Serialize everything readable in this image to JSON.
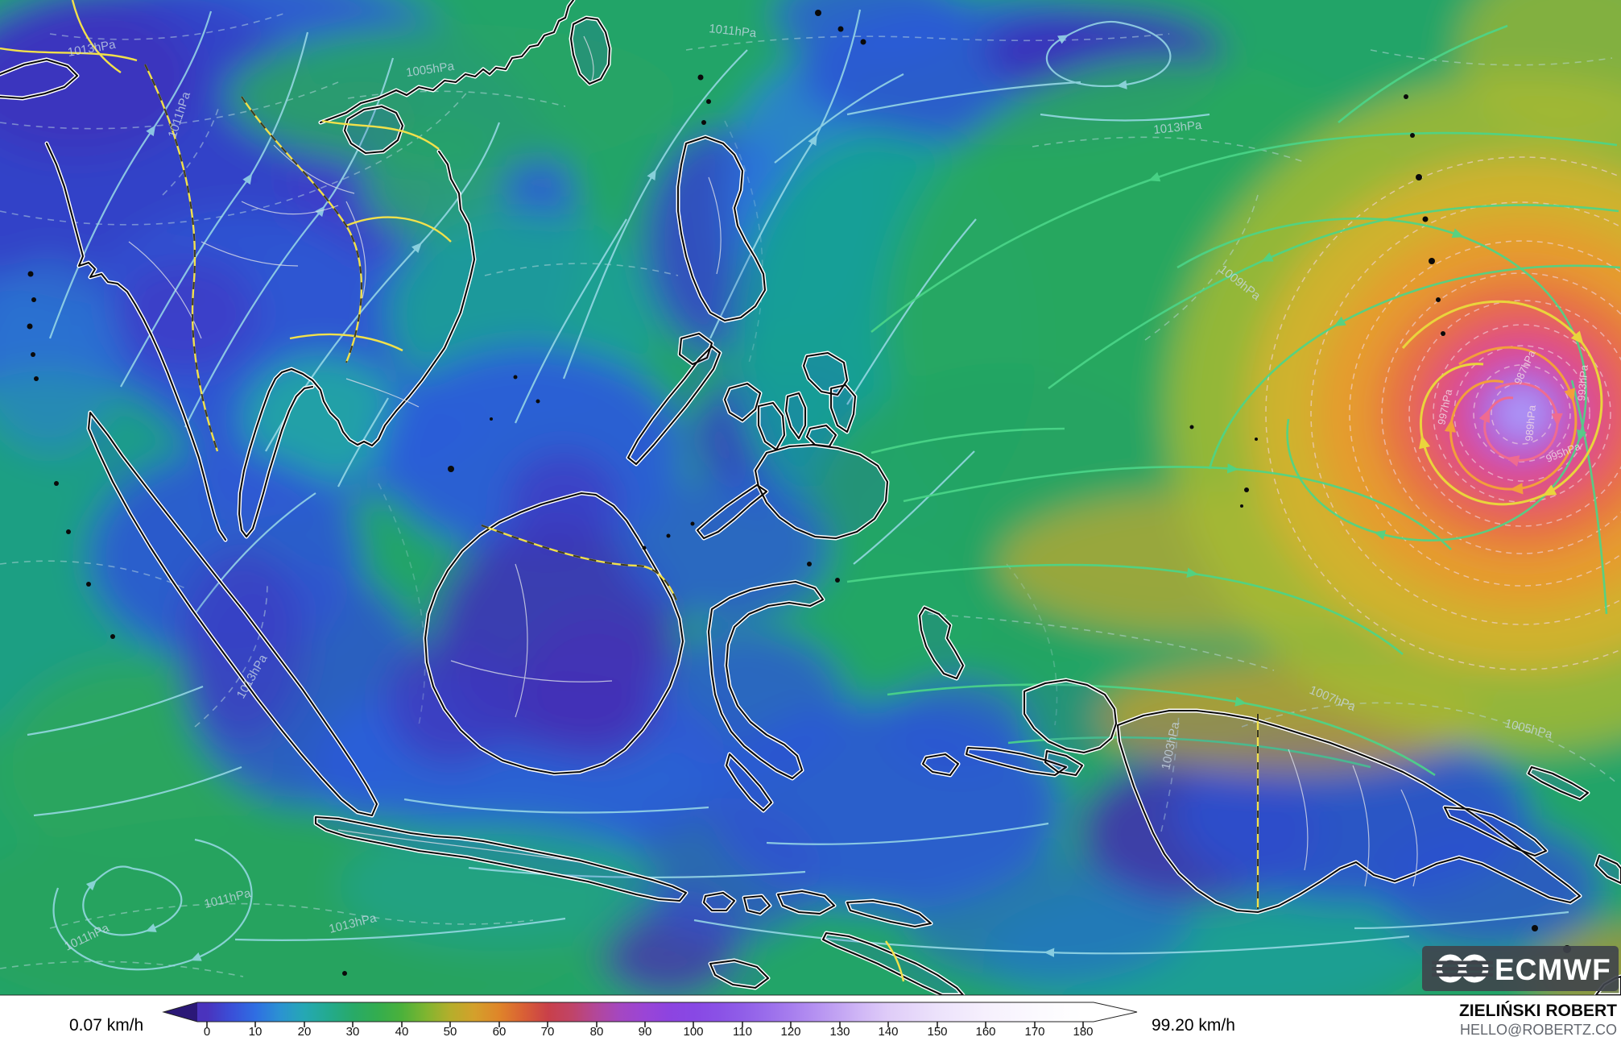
{
  "map": {
    "description": "ECMWF wind speed and streamline forecast map of Southeast Asia and the Western Pacific with a tropical cyclone east of the Philippines",
    "isobar_labels": [
      "1013hPa",
      "1005hPa",
      "1011hPa",
      "1011hPa",
      "1013hPa",
      "1009hPa",
      "1013hPa",
      "1011hPa",
      "1013hPa",
      "1011hPa",
      "1007hPa",
      "1005hPa",
      "1003hPa",
      "995hPa",
      "997hPa",
      "993hPa",
      "987hPa",
      "989hPa"
    ]
  },
  "legend": {
    "min_label": "0.07 km/h",
    "max_label": "99.20 km/h",
    "unit": "km/h",
    "ticks": [
      "0",
      "10",
      "20",
      "30",
      "40",
      "50",
      "60",
      "70",
      "80",
      "90",
      "100",
      "110",
      "120",
      "130",
      "140",
      "150",
      "160",
      "170",
      "180"
    ],
    "colorbar_stops": [
      {
        "value": 0,
        "color": "#4a33bd"
      },
      {
        "value": 5,
        "color": "#3a4fd8"
      },
      {
        "value": 10,
        "color": "#2f6ee2"
      },
      {
        "value": 15,
        "color": "#2b92d2"
      },
      {
        "value": 20,
        "color": "#25a8b4"
      },
      {
        "value": 25,
        "color": "#23aa8e"
      },
      {
        "value": 30,
        "color": "#28aa68"
      },
      {
        "value": 35,
        "color": "#33ad4f"
      },
      {
        "value": 40,
        "color": "#4bb13b"
      },
      {
        "value": 45,
        "color": "#7fb530"
      },
      {
        "value": 50,
        "color": "#b5ae2b"
      },
      {
        "value": 55,
        "color": "#d4a02b"
      },
      {
        "value": 60,
        "color": "#df8529"
      },
      {
        "value": 65,
        "color": "#d96035"
      },
      {
        "value": 70,
        "color": "#c94049"
      },
      {
        "value": 75,
        "color": "#c04468"
      },
      {
        "value": 80,
        "color": "#b2479a"
      },
      {
        "value": 85,
        "color": "#a447c2"
      },
      {
        "value": 90,
        "color": "#9a45d6"
      },
      {
        "value": 95,
        "color": "#8d44e0"
      },
      {
        "value": 100,
        "color": "#8848e4"
      },
      {
        "value": 105,
        "color": "#8a51e6"
      },
      {
        "value": 110,
        "color": "#905ee8"
      },
      {
        "value": 115,
        "color": "#9a6deb"
      },
      {
        "value": 120,
        "color": "#a77eee"
      },
      {
        "value": 125,
        "color": "#b591f1"
      },
      {
        "value": 130,
        "color": "#c3a5f3"
      },
      {
        "value": 135,
        "color": "#d2baf6"
      },
      {
        "value": 140,
        "color": "#dfccf8"
      },
      {
        "value": 150,
        "color": "#ece2fb"
      },
      {
        "value": 160,
        "color": "#f6f0fd"
      },
      {
        "value": 170,
        "color": "#fbf9fe"
      },
      {
        "value": 180,
        "color": "#ffffff"
      }
    ]
  },
  "branding": {
    "logo_text": "ECMWF",
    "author": "ZIELIŃSKI ROBERT",
    "contact": "HELLO@ROBERTZ.CO"
  }
}
